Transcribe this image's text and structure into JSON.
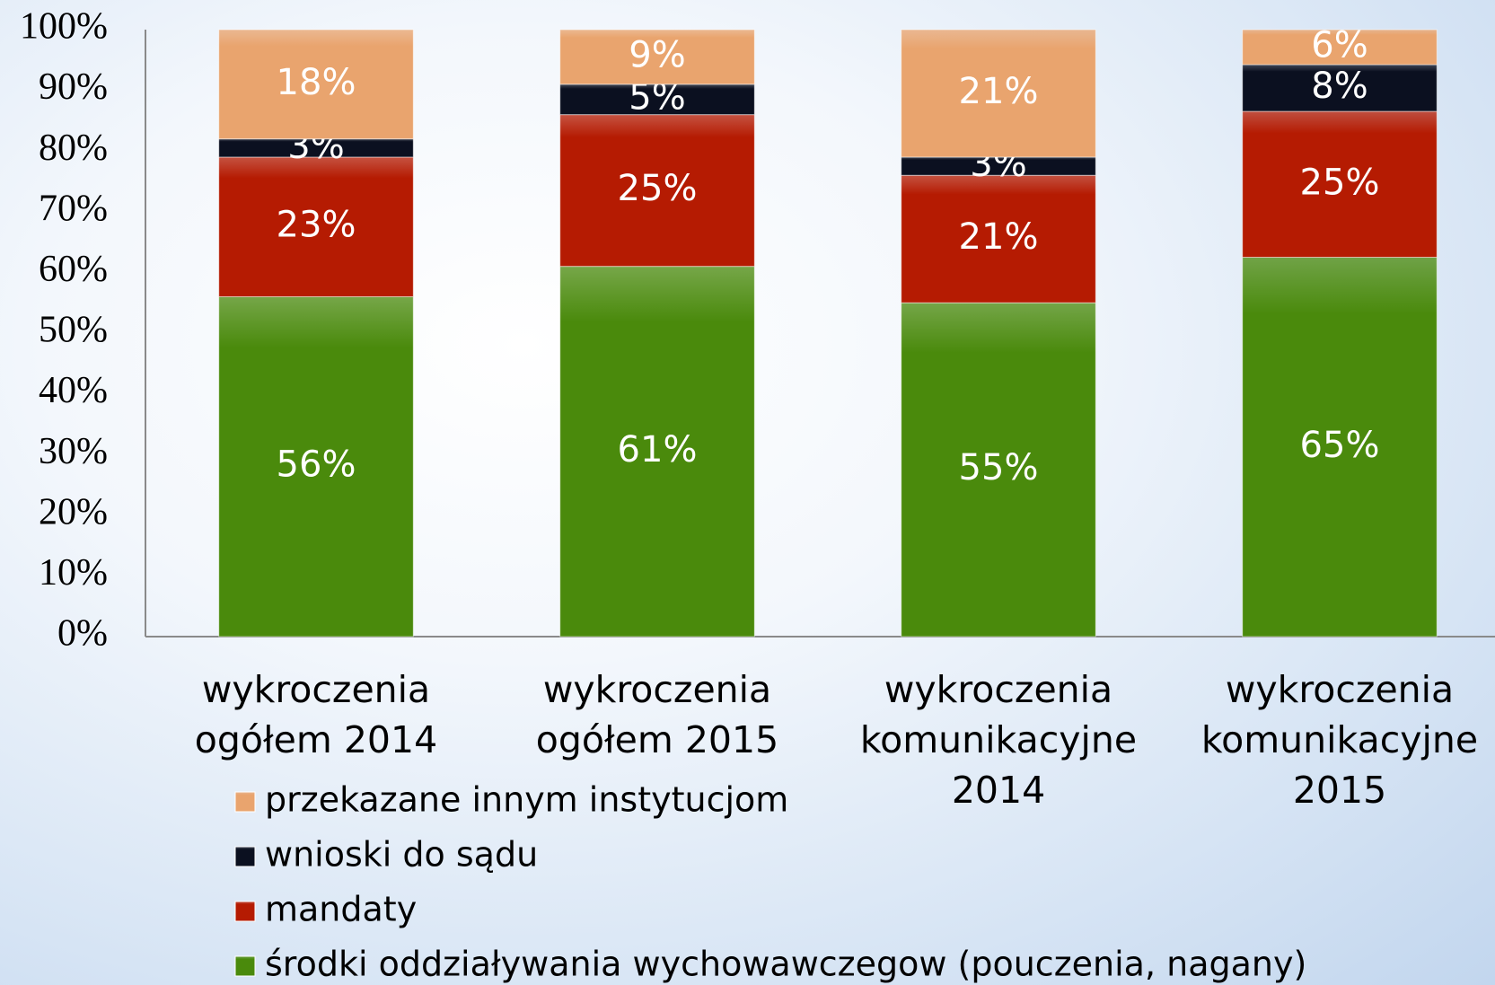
{
  "chart_data": {
    "type": "bar",
    "categories": [
      "wykroczenia ogółem 2014",
      "wykroczenia ogółem 2015",
      "wykroczenia komunikacyjne 2014",
      "wykroczenia komunikacyjne 2015"
    ],
    "series": [
      {
        "name": "środki oddziaływania wychowawczegow (pouczenia, nagany)",
        "color": "#4a8a0c",
        "values": [
          56,
          61,
          55,
          65
        ],
        "value_labels": [
          "56%",
          "61%",
          "55%",
          "65%"
        ]
      },
      {
        "name": "mandaty",
        "color": "#b51b02",
        "values": [
          23,
          25,
          21,
          25
        ],
        "value_labels": [
          "23%",
          "25%",
          "21%",
          "25%"
        ]
      },
      {
        "name": "wnioski do sądu",
        "color": "#0b1020",
        "values": [
          3,
          5,
          3,
          8
        ],
        "value_labels": [
          "3%",
          "5%",
          "3%",
          "8%"
        ]
      },
      {
        "name": "przekazane innym instytucjom",
        "color": "#e9a46e",
        "values": [
          18,
          9,
          21,
          6
        ],
        "value_labels": [
          "18%",
          "9%",
          "21%",
          "6%"
        ]
      }
    ],
    "ylim": [
      0,
      100
    ],
    "yticks": [
      {
        "value": 0,
        "label": "0%"
      },
      {
        "value": 10,
        "label": "10%"
      },
      {
        "value": 20,
        "label": "20%"
      },
      {
        "value": 30,
        "label": "30%"
      },
      {
        "value": 40,
        "label": "40%"
      },
      {
        "value": 50,
        "label": "50%"
      },
      {
        "value": 60,
        "label": "60%"
      },
      {
        "value": 70,
        "label": "70%"
      },
      {
        "value": 80,
        "label": "80%"
      },
      {
        "value": 90,
        "label": "90%"
      },
      {
        "value": 100,
        "label": "100%"
      }
    ],
    "grid": false
  }
}
